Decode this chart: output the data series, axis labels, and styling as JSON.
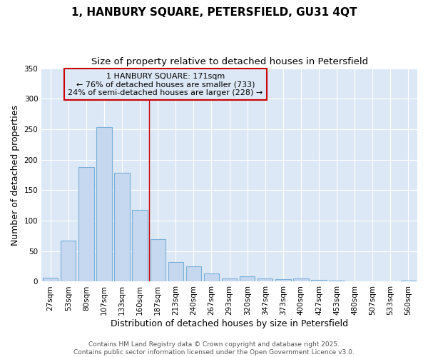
{
  "title_line1": "1, HANBURY SQUARE, PETERSFIELD, GU31 4QT",
  "title_line2": "Size of property relative to detached houses in Petersfield",
  "categories": [
    "27sqm",
    "53sqm",
    "80sqm",
    "107sqm",
    "133sqm",
    "160sqm",
    "187sqm",
    "213sqm",
    "240sqm",
    "267sqm",
    "293sqm",
    "320sqm",
    "347sqm",
    "373sqm",
    "400sqm",
    "427sqm",
    "453sqm",
    "480sqm",
    "507sqm",
    "533sqm",
    "560sqm"
  ],
  "values": [
    6,
    67,
    188,
    254,
    178,
    118,
    70,
    32,
    25,
    13,
    5,
    9,
    5,
    4,
    5,
    3,
    2,
    1,
    1,
    1,
    2
  ],
  "bar_color": "#c5d8f0",
  "bar_edge_color": "#7ab0d8",
  "ylabel": "Number of detached properties",
  "xlabel": "Distribution of detached houses by size in Petersfield",
  "ylim": [
    0,
    350
  ],
  "yticks": [
    0,
    50,
    100,
    150,
    200,
    250,
    300,
    350
  ],
  "annotation_title": "1 HANBURY SQUARE: 171sqm",
  "annotation_line2": "← 76% of detached houses are smaller (733)",
  "annotation_line3": "24% of semi-detached houses are larger (228) →",
  "annotation_box_color": "#cc0000",
  "vline_x": 5.5,
  "vline_color": "#cc0000",
  "plot_bg_color": "#dce8f5",
  "fig_bg_color": "#ffffff",
  "grid_color": "#ffffff",
  "footer_line1": "Contains HM Land Registry data © Crown copyright and database right 2025.",
  "footer_line2": "Contains public sector information licensed under the Open Government Licence v3.0.",
  "title_fontsize": 11,
  "subtitle_fontsize": 9.5,
  "axis_label_fontsize": 9,
  "tick_fontsize": 7.5,
  "annotation_fontsize": 8,
  "footer_fontsize": 6.5
}
